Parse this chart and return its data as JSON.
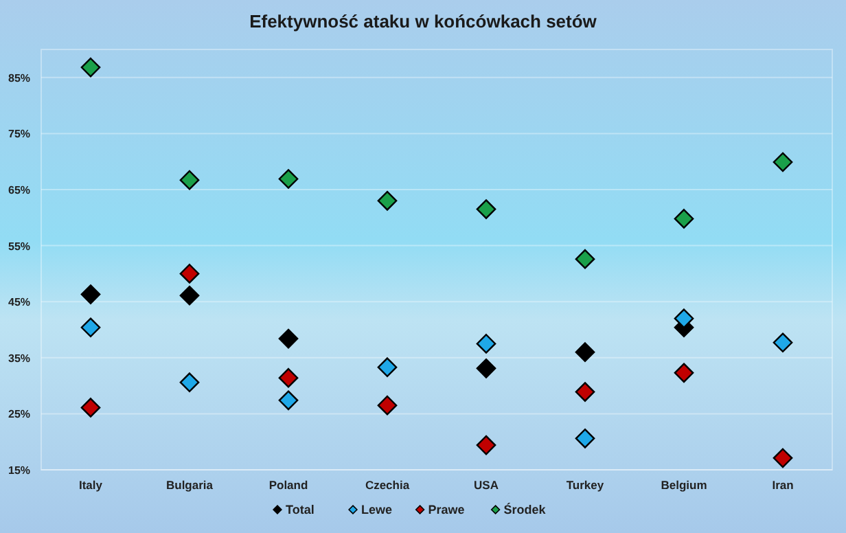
{
  "chart_data": {
    "type": "scatter",
    "title": "Efektywność ataku w końcówkach setów",
    "categories": [
      "Italy",
      "Bulgaria",
      "Poland",
      "Czechia",
      "USA",
      "Turkey",
      "Belgium",
      "Iran"
    ],
    "series": [
      {
        "name": "Total",
        "color": "#000000",
        "values": [
          46.3,
          46.1,
          38.4,
          null,
          33.1,
          36.0,
          40.4,
          null
        ]
      },
      {
        "name": "Lewe",
        "color": "#1fa8e8",
        "values": [
          40.4,
          30.6,
          27.4,
          33.3,
          37.5,
          20.6,
          42.0,
          37.7
        ]
      },
      {
        "name": "Prawe",
        "color": "#c00000",
        "values": [
          26.1,
          50.0,
          31.4,
          26.5,
          19.4,
          28.9,
          32.3,
          17.1
        ]
      },
      {
        "name": "Środek",
        "color": "#1aa04a",
        "values": [
          86.8,
          66.7,
          66.9,
          63.0,
          61.5,
          52.6,
          59.8,
          69.9
        ]
      }
    ],
    "ylim": [
      15,
      90
    ],
    "yticks": [
      {
        "value": 15,
        "label": "15%"
      },
      {
        "value": 25,
        "label": "25%"
      },
      {
        "value": 35,
        "label": "35%"
      },
      {
        "value": 45,
        "label": "45%"
      },
      {
        "value": 55,
        "label": "55%"
      },
      {
        "value": 65,
        "label": "65%"
      },
      {
        "value": 75,
        "label": "75%"
      },
      {
        "value": 85,
        "label": "85%"
      }
    ],
    "grid": "y",
    "legend": "bottom",
    "marker": "diamond"
  }
}
